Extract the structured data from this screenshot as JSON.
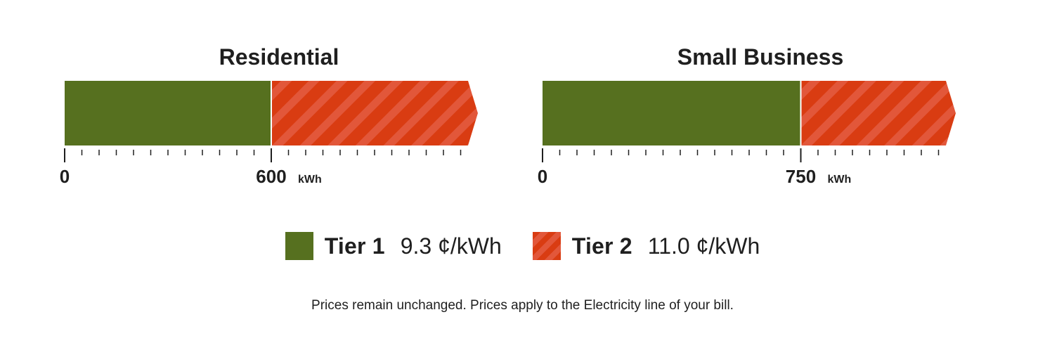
{
  "chart_data": [
    {
      "type": "bar",
      "title": "Residential",
      "unit": "kWh",
      "segments": [
        {
          "tier": "Tier 1",
          "from": 0,
          "to": 600
        },
        {
          "tier": "Tier 2",
          "from": 600,
          "to": 1200,
          "open_ended": true
        }
      ],
      "tick_labels": [
        "0",
        "600"
      ],
      "threshold": 600
    },
    {
      "type": "bar",
      "title": "Small Business",
      "unit": "kWh",
      "segments": [
        {
          "tier": "Tier 1",
          "from": 0,
          "to": 750
        },
        {
          "tier": "Tier 2",
          "from": 750,
          "to": 1200,
          "open_ended": true
        }
      ],
      "tick_labels": [
        "0",
        "750"
      ],
      "threshold": 750
    }
  ],
  "legend": [
    {
      "name": "Tier 1",
      "price": "9.3 ¢/kWh",
      "color": "#56701f"
    },
    {
      "name": "Tier 2",
      "price": "11.0 ¢/kWh",
      "color": "#d93c12"
    }
  ],
  "footnote": "Prices remain unchanged. Prices apply to the Electricity line of your bill.",
  "colors": {
    "tier1": "#56701f",
    "tier2": "#d93c12",
    "tier2_stripe": "#e2573a",
    "axis": "#1f1f1f"
  }
}
